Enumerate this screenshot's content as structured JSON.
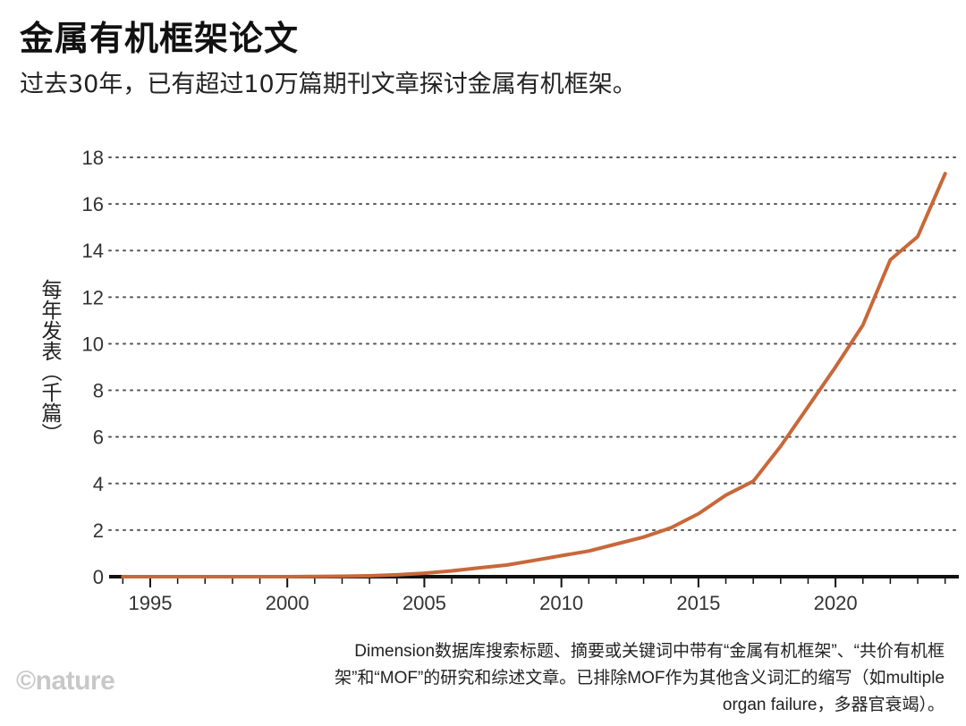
{
  "header": {
    "title": "金属有机框架论文",
    "subtitle": "过去30年，已有超过10万篇期刊文章探讨金属有机框架。"
  },
  "footer": {
    "note": "Dimension数据库搜索标题、摘要或关键词中带有“金属有机框架”、“共价有机框架”和“MOF”的研究和综述文章。已排除MOF作为其他含义词汇的缩写（如multiple organ failure，多器官衰竭）。",
    "logo": "©nature"
  },
  "colors": {
    "line": "#c8683a",
    "grid": "#555555",
    "axis": "#111111"
  },
  "chart_data": {
    "type": "line",
    "title": "金属有机框架论文",
    "ylabel": "每年发表（千篇）",
    "xlabel": "",
    "xlim": [
      1993.5,
      2024.5
    ],
    "ylim": [
      0,
      18
    ],
    "xticks": [
      1995,
      2000,
      2005,
      2010,
      2015,
      2020
    ],
    "yticks": [
      0,
      2,
      4,
      6,
      8,
      10,
      12,
      14,
      16,
      18
    ],
    "grid": "horizontal-dotted",
    "series": [
      {
        "name": "金属有机框架论文",
        "x": [
          1994,
          1995,
          1996,
          1997,
          1998,
          1999,
          2000,
          2001,
          2002,
          2003,
          2004,
          2005,
          2006,
          2007,
          2008,
          2009,
          2010,
          2011,
          2012,
          2013,
          2014,
          2015,
          2016,
          2017,
          2018,
          2019,
          2020,
          2021,
          2022,
          2023,
          2024
        ],
        "values": [
          0,
          0,
          0,
          0,
          0,
          0,
          0,
          0.01,
          0.02,
          0.04,
          0.08,
          0.15,
          0.25,
          0.38,
          0.5,
          0.7,
          0.9,
          1.1,
          1.4,
          1.7,
          2.1,
          2.7,
          3.5,
          4.1,
          5.6,
          7.3,
          9.0,
          10.8,
          13.6,
          14.6,
          17.3
        ]
      }
    ]
  }
}
